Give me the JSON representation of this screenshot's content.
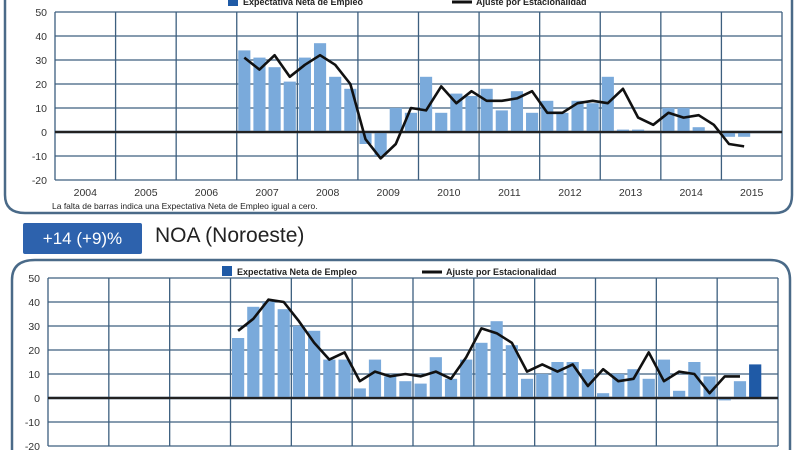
{
  "colors": {
    "bar": "#7aaadb",
    "bar_highlight": "#1f5aa6",
    "line": "#111111",
    "grid": "#3d5f7f",
    "frame": "#4a6a88",
    "badge": "#2d62ad"
  },
  "region": {
    "badge": "+14 (+9)%",
    "title": "NOA (Noroeste)"
  },
  "chart_data": [
    {
      "type": "bar+line",
      "legend": {
        "bar": "Expectativa Neta de Empleo",
        "line": "Ajuste por Estacionalidad"
      },
      "ylim": [
        -20,
        50
      ],
      "yticks": [
        50,
        40,
        30,
        20,
        10,
        0,
        -10,
        -20
      ],
      "categories": [
        "2004",
        "2005",
        "2006",
        "2007",
        "2008",
        "2009",
        "2010",
        "2011",
        "2012",
        "2013",
        "2014",
        "2015"
      ],
      "grid": true,
      "start_year": "2007",
      "bars": [
        34,
        31,
        27,
        21,
        31,
        37,
        23,
        18,
        -5,
        -10,
        10,
        8,
        23,
        8,
        16,
        15,
        18,
        9,
        17,
        8,
        13,
        8,
        13,
        12,
        23,
        1,
        1,
        0,
        10,
        10,
        2,
        0,
        -2,
        -2
      ],
      "line": [
        31,
        26,
        32,
        23,
        28,
        32,
        28,
        20,
        -3,
        -11,
        -5,
        10,
        9,
        19,
        12,
        17,
        13,
        13,
        14,
        17,
        8,
        8,
        12,
        13,
        12,
        18,
        6,
        3,
        8,
        6,
        7,
        3,
        -5,
        -6
      ],
      "footnote": "La falta de barras indica una Expectativa Neta de Empleo igual a cero."
    },
    {
      "type": "bar+line",
      "legend": {
        "bar": "Expectativa Neta de Empleo",
        "line": "Ajuste por Estacionalidad"
      },
      "ylim": [
        -20,
        50
      ],
      "yticks": [
        50,
        40,
        30,
        20,
        10,
        0,
        -10,
        -20
      ],
      "grid": true,
      "start_year": "2007",
      "bars": [
        25,
        38,
        40,
        37,
        30,
        28,
        16,
        16,
        4,
        16,
        9,
        7,
        6,
        17,
        8,
        16,
        23,
        32,
        22,
        8,
        10,
        15,
        15,
        12,
        2,
        10,
        12,
        8,
        16,
        3,
        15,
        9,
        -1,
        7,
        14
      ],
      "highlight_last": true,
      "line": [
        28,
        33,
        41,
        40,
        32,
        23,
        16,
        19,
        7,
        11,
        9,
        10,
        9,
        11,
        8,
        17,
        29,
        27,
        23,
        11,
        14,
        11,
        14,
        5,
        12,
        7,
        8,
        19,
        7,
        11,
        10,
        2,
        9,
        9
      ]
    }
  ]
}
